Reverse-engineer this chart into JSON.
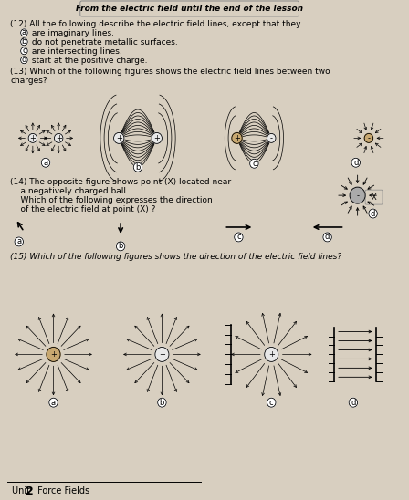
{
  "bg_color": "#d8cfc0",
  "title": "From the electric field until the end of the lesson",
  "q12_text": "(12) All the following describe the electric field lines, except that they",
  "q12_a": " are imaginary lines.",
  "q12_b": " do not penetrate metallic surfaces.",
  "q12_c": " are intersecting lines.",
  "q12_d": " start at the positive charge.",
  "q13_line1": "(13) Which of the following figures shows the electric field lines between two",
  "q13_line2": "charges?",
  "q14_line1": "(14) The opposite figure shows point (X) located near",
  "q14_line2": "    a negatively charged ball.",
  "q14_line3": "    Which of the following expresses the direction",
  "q14_line4": "    of the electric field at point (X) ?",
  "q15_line1": "(15) Which of the following figures shows the direction of the electric field lines?",
  "footer": "Unit ",
  "footer2": "2",
  "footer3": " Force Fields"
}
